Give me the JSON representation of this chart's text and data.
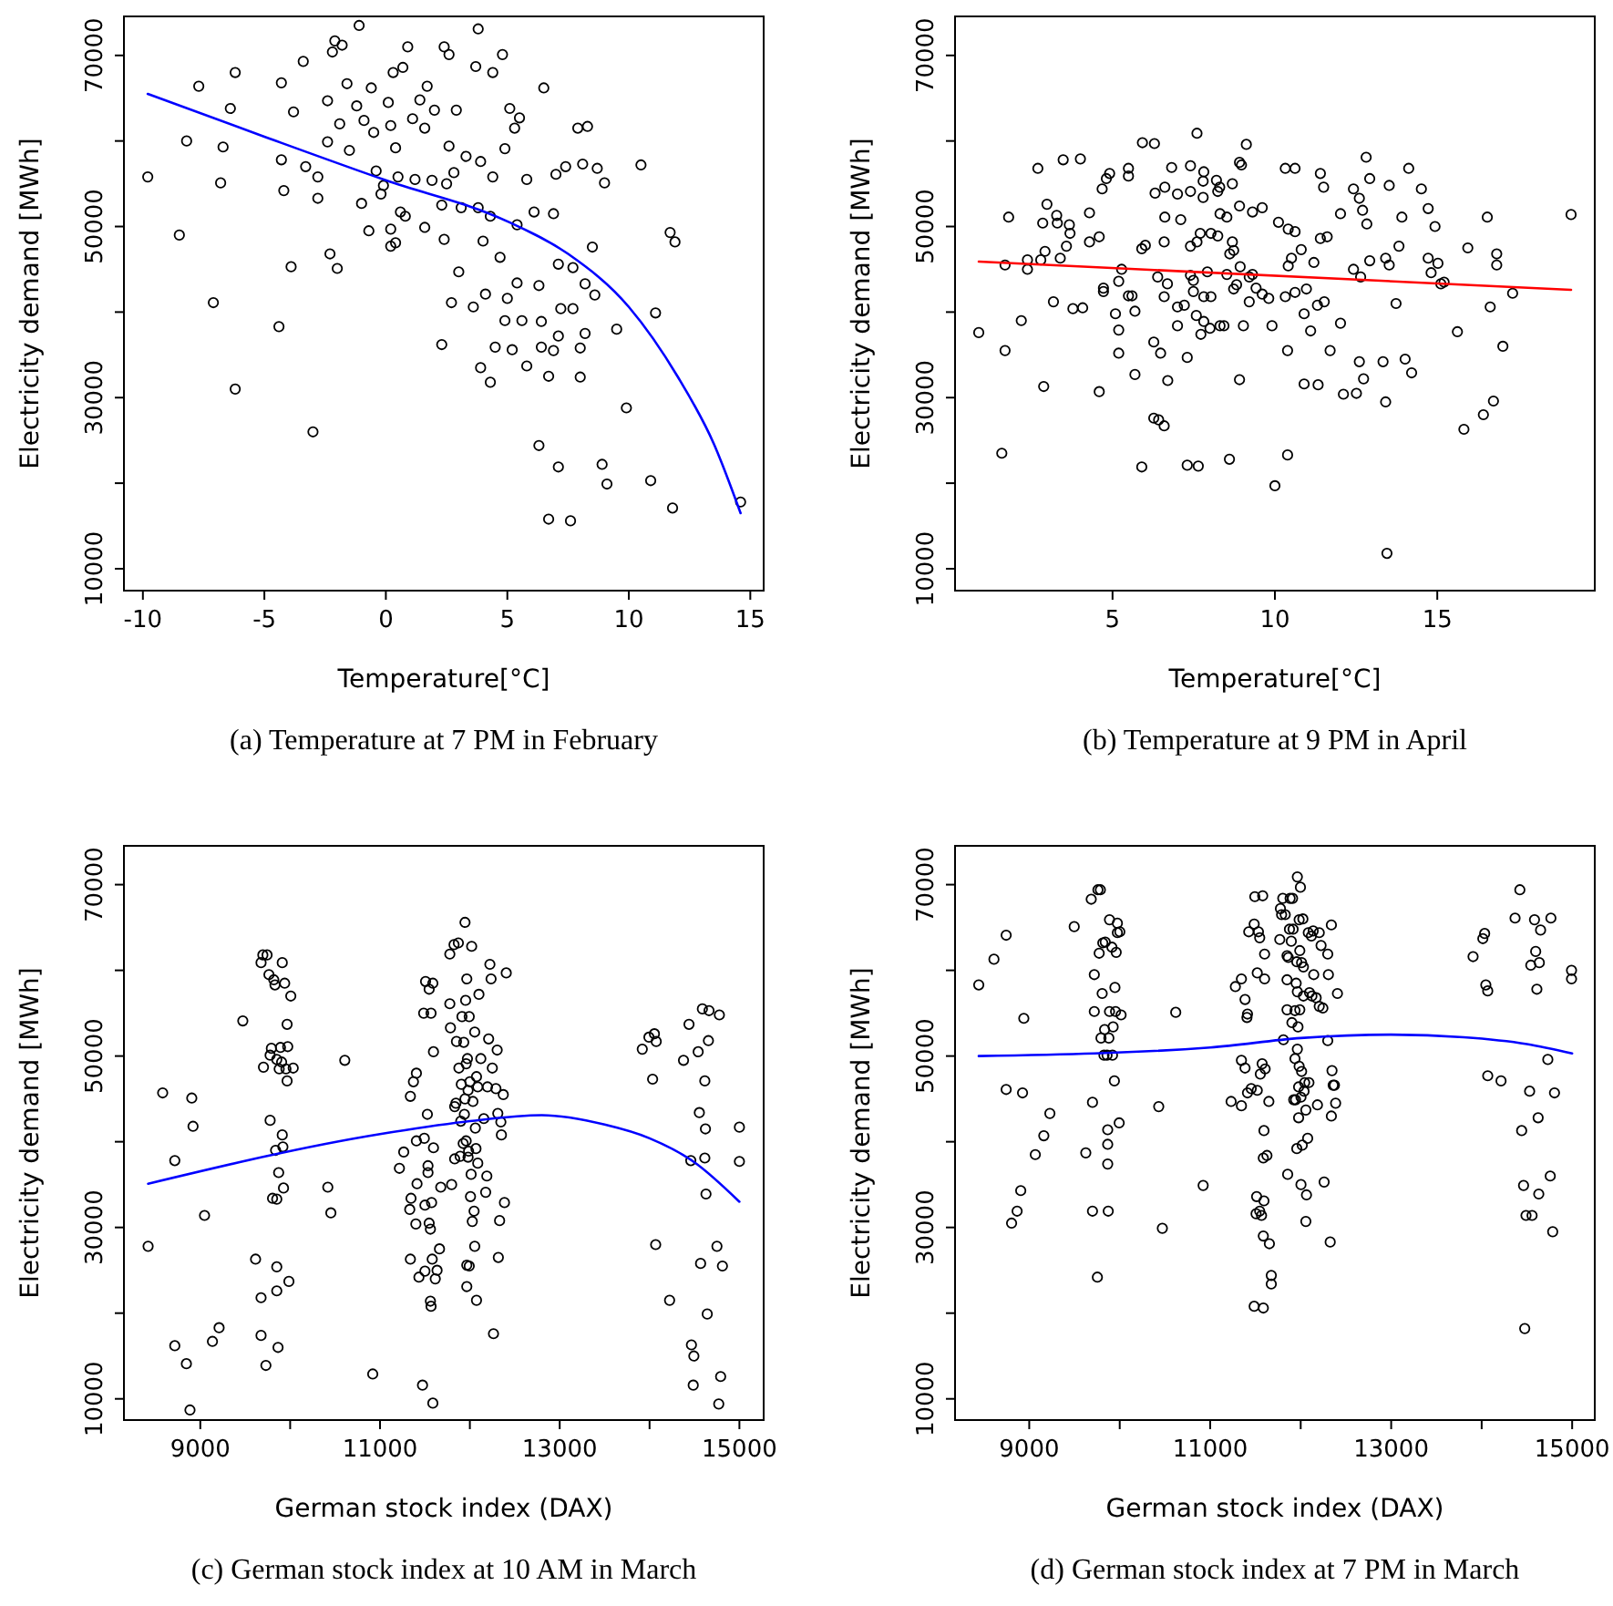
{
  "chart_data": [
    {
      "type": "scatter",
      "title": "(a) Temperature at 7 PM in February",
      "xlabel": "Temperature[°C]",
      "ylabel": "Electricity demand [MWh]",
      "xlim": [
        -10.78,
        15.55
      ],
      "ylim": [
        7440,
        74560
      ],
      "xticks": [
        -10,
        -5,
        0,
        5,
        10,
        15
      ],
      "yticks": [
        10000,
        {
          "value": 20000,
          "label": null
        },
        30000,
        {
          "value": 40000,
          "label": null
        },
        50000,
        {
          "value": 60000,
          "label": null
        },
        70000
      ],
      "series": [
        {
          "marker": "circle",
          "color": "#000000",
          "x": [
            -9.8,
            -8.5,
            -8.2,
            -7.7,
            -7.1,
            -6.8,
            -6.7,
            -6.4,
            -6.2,
            -6.2,
            -4.4,
            -4.3,
            -4.3,
            -4.2,
            -3.9,
            -3.8,
            -3.4,
            -3.3,
            -3.0,
            -2.8,
            -2.8,
            -2.4,
            -2.4,
            -2.3,
            -2.2,
            -2.1,
            -2.0,
            -1.9,
            -1.8,
            -1.6,
            -1.5,
            -1.2,
            -1.1,
            -1.0,
            -0.9,
            -0.7,
            -0.6,
            -0.5,
            -0.4,
            -0.2,
            -0.1,
            0.1,
            0.2,
            0.2,
            0.2,
            0.3,
            0.4,
            0.4,
            0.5,
            0.6,
            0.7,
            0.8,
            0.9,
            1.1,
            1.2,
            1.4,
            1.6,
            1.6,
            1.7,
            1.9,
            2.0,
            2.3,
            2.3,
            2.4,
            2.4,
            2.5,
            2.6,
            2.6,
            2.7,
            2.8,
            2.9,
            3.0,
            3.1,
            3.3,
            3.6,
            3.7,
            3.8,
            3.8,
            3.9,
            3.9,
            4.0,
            4.1,
            4.3,
            4.3,
            4.4,
            4.4,
            4.5,
            4.7,
            4.8,
            4.9,
            4.9,
            5.0,
            5.1,
            5.2,
            5.3,
            5.4,
            5.4,
            5.5,
            5.6,
            5.8,
            5.8,
            6.1,
            6.3,
            6.3,
            6.4,
            6.4,
            6.5,
            6.7,
            6.7,
            6.9,
            6.9,
            7.0,
            7.1,
            7.1,
            7.1,
            7.2,
            7.4,
            7.6,
            7.7,
            7.7,
            7.9,
            8.0,
            8.0,
            8.1,
            8.2,
            8.2,
            8.3,
            8.5,
            8.6,
            8.7,
            8.9,
            9.0,
            9.1,
            9.5,
            9.9,
            10.5,
            10.9,
            11.1,
            11.7,
            11.8,
            11.9,
            14.6
          ],
          "values": [
            55800,
            49000,
            60000,
            66400,
            41100,
            55100,
            59300,
            63800,
            68000,
            31000,
            38300,
            57800,
            66800,
            54200,
            45300,
            63400,
            69300,
            57000,
            26000,
            55800,
            53300,
            64700,
            59900,
            46800,
            70400,
            71700,
            45100,
            62000,
            71200,
            66700,
            58900,
            64100,
            73500,
            52700,
            62400,
            49500,
            66200,
            61000,
            56500,
            53800,
            54800,
            64500,
            61800,
            49700,
            47700,
            68000,
            59200,
            48100,
            55800,
            51700,
            68600,
            51200,
            71000,
            62600,
            55500,
            64800,
            49900,
            61500,
            66400,
            55400,
            63600,
            36200,
            52500,
            71000,
            48500,
            55000,
            70100,
            59400,
            41100,
            56300,
            63600,
            44700,
            52200,
            58200,
            40600,
            68700,
            73100,
            52200,
            57600,
            33500,
            48300,
            42100,
            51200,
            31800,
            55800,
            68000,
            35900,
            46400,
            70100,
            59100,
            39000,
            41600,
            63800,
            35600,
            61500,
            50200,
            43400,
            62700,
            39000,
            55500,
            33700,
            51700,
            24400,
            43100,
            38900,
            35900,
            66200,
            32500,
            15800,
            51500,
            35500,
            56100,
            45600,
            21900,
            37200,
            40400,
            57000,
            15600,
            45200,
            40400,
            61500,
            35800,
            32400,
            57300,
            43300,
            37500,
            61700,
            47600,
            42000,
            56800,
            22200,
            55100,
            19900,
            38000,
            28800,
            57200,
            20300,
            39900,
            49300,
            17100,
            48200,
            17800
          ]
        },
        {
          "type": "line",
          "color": "#0000ff",
          "x": [
            -9.8,
            -5,
            0,
            5,
            7.5,
            10,
            12,
            13.5,
            14.6
          ],
          "values": [
            65500,
            60500,
            55400,
            50600,
            46800,
            40600,
            32500,
            24600,
            16500
          ]
        }
      ]
    },
    {
      "type": "scatter",
      "title": "(b) Temperature at 9 PM in April",
      "xlabel": "Temperature[°C]",
      "ylabel": "Electricity demand [MWh]",
      "xlim": [
        0.15,
        19.85
      ],
      "ylim": [
        7440,
        74560
      ],
      "xticks": [
        5,
        10,
        15
      ],
      "yticks": [
        10000,
        {
          "value": 20000,
          "label": null
        },
        30000,
        {
          "value": 40000,
          "label": null
        },
        50000,
        {
          "value": 60000,
          "label": null
        },
        70000
      ],
      "series": [
        {
          "marker": "circle",
          "color": "#000000",
          "x": [
            0.88,
            1.59,
            1.69,
            1.69,
            1.8,
            2.19,
            2.38,
            2.38,
            2.7,
            2.79,
            2.85,
            2.88,
            2.92,
            2.98,
            3.18,
            3.28,
            3.3,
            3.39,
            3.48,
            3.58,
            3.67,
            3.69,
            3.78,
            4.01,
            4.08,
            4.29,
            4.29,
            4.59,
            4.59,
            4.68,
            4.72,
            4.72,
            4.81,
            4.91,
            5.09,
            5.19,
            5.19,
            5.19,
            5.28,
            5.49,
            5.49,
            5.49,
            5.6,
            5.69,
            5.69,
            5.9,
            5.9,
            5.92,
            6.01,
            6.27,
            6.27,
            6.29,
            6.31,
            6.39,
            6.42,
            6.48,
            6.59,
            6.59,
            6.59,
            6.61,
            6.61,
            6.69,
            6.7,
            6.82,
            7.0,
            7.0,
            7.0,
            7.1,
            7.21,
            7.3,
            7.3,
            7.4,
            7.4,
            7.4,
            7.4,
            7.49,
            7.49,
            7.58,
            7.6,
            7.6,
            7.64,
            7.7,
            7.72,
            7.79,
            7.79,
            7.81,
            7.81,
            7.81,
            7.92,
            8.0,
            8.03,
            8.03,
            8.2,
            8.24,
            8.24,
            8.3,
            8.31,
            8.31,
            8.43,
            8.52,
            8.52,
            8.6,
            8.61,
            8.69,
            8.69,
            8.73,
            8.73,
            8.82,
            8.91,
            8.91,
            8.91,
            8.93,
            8.97,
            9.03,
            9.12,
            9.21,
            9.21,
            9.31,
            9.31,
            9.42,
            9.61,
            9.61,
            9.81,
            9.91,
            10.0,
            10.11,
            10.32,
            10.32,
            10.39,
            10.39,
            10.41,
            10.41,
            10.51,
            10.62,
            10.62,
            10.62,
            10.81,
            10.9,
            10.9,
            10.97,
            11.1,
            11.2,
            11.31,
            11.33,
            11.4,
            11.4,
            11.5,
            11.52,
            11.61,
            11.7,
            12.02,
            12.02,
            12.11,
            12.42,
            12.42,
            12.51,
            12.6,
            12.6,
            12.64,
            12.7,
            12.73,
            12.81,
            12.83,
            12.92,
            12.92,
            13.33,
            13.41,
            13.41,
            13.45,
            13.52,
            13.52,
            13.73,
            13.82,
            13.91,
            14.01,
            14.12,
            14.21,
            14.51,
            14.72,
            14.72,
            14.81,
            14.93,
            15.02,
            15.11,
            15.21,
            15.62,
            15.82,
            15.94,
            16.42,
            16.54,
            16.63,
            16.73,
            16.83,
            16.83,
            17.02,
            17.32,
            19.12
          ],
          "values": [
            37600,
            23500,
            45500,
            35500,
            51100,
            39000,
            46100,
            45000,
            56800,
            46100,
            50400,
            31300,
            47100,
            52600,
            41200,
            51300,
            50400,
            46300,
            57800,
            47700,
            50200,
            49200,
            40400,
            57900,
            40500,
            51600,
            48200,
            30700,
            48800,
            54400,
            42800,
            42400,
            55600,
            56200,
            39800,
            37900,
            43600,
            35200,
            45000,
            56800,
            55900,
            41900,
            41900,
            32700,
            40100,
            47400,
            21900,
            59800,
            47800,
            36500,
            27600,
            59700,
            53900,
            44100,
            27400,
            35200,
            26700,
            48200,
            41800,
            54600,
            51100,
            43300,
            32000,
            56900,
            53800,
            40600,
            38400,
            50800,
            40800,
            34700,
            22100,
            57100,
            54100,
            47700,
            44300,
            43700,
            42400,
            39600,
            60900,
            48200,
            22000,
            49200,
            37400,
            53400,
            55300,
            56400,
            41800,
            38900,
            44700,
            38100,
            41800,
            49200,
            55400,
            48900,
            54100,
            54600,
            38400,
            51500,
            38400,
            51100,
            44400,
            22800,
            46800,
            55000,
            48200,
            47200,
            42700,
            43200,
            57500,
            32100,
            52400,
            45300,
            57200,
            38400,
            59600,
            41200,
            44100,
            44400,
            51700,
            42800,
            52200,
            42100,
            41600,
            38400,
            19700,
            50500,
            56800,
            41800,
            23300,
            35500,
            49700,
            45400,
            46300,
            56800,
            42300,
            49400,
            47300,
            31600,
            39800,
            42700,
            37800,
            45800,
            40800,
            31500,
            56200,
            48600,
            54600,
            41200,
            48800,
            35500,
            38700,
            51500,
            30400,
            54400,
            45000,
            30500,
            53300,
            34200,
            44100,
            51900,
            32200,
            58100,
            50300,
            46000,
            55600,
            34200,
            46300,
            29500,
            11800,
            54800,
            45500,
            41000,
            47700,
            51100,
            34500,
            56800,
            32900,
            54400,
            52100,
            46300,
            44600,
            50000,
            45700,
            43300,
            43500,
            37700,
            26300,
            47500,
            28000,
            51100,
            40600,
            29600,
            46800,
            45500,
            36000,
            42200,
            51400
          ]
        },
        {
          "type": "line",
          "color": "#ff0000",
          "x": [
            0.88,
            19.12
          ],
          "values": [
            45900,
            42600
          ]
        }
      ]
    },
    {
      "type": "scatter",
      "title": "(c) German stock index at 10 AM in March",
      "xlabel": "German stock index (DAX)",
      "ylabel": "Electricity demand [MWh]",
      "xlim": [
        8150,
        15270
      ],
      "ylim": [
        7524,
        74528
      ],
      "xticks": [
        9000,
        {
          "value": 10000,
          "label": null
        },
        11000,
        {
          "value": 12000,
          "label": null
        },
        13000,
        {
          "value": 14000,
          "label": null
        },
        15000
      ],
      "yticks": [
        10000,
        {
          "value": 20000,
          "label": null
        },
        30000,
        {
          "value": 40000,
          "label": null
        },
        50000,
        {
          "value": 60000,
          "label": null
        },
        70000
      ],
      "series": [
        {
          "marker": "circle",
          "color": "#000000",
          "x": [
            8419,
            8581,
            8716,
            8716,
            8845,
            8885,
            8905,
            8919,
            9047,
            9135,
            9209,
            9473,
            9615,
            9676,
            9676,
            9676,
            9696,
            9703,
            9730,
            9743,
            9764,
            9777,
            9777,
            9791,
            9804,
            9818,
            9831,
            9838,
            9851,
            9851,
            9851,
            9851,
            9865,
            9878,
            9872,
            9892,
            9905,
            9912,
            9919,
            9912,
            9926,
            9939,
            9953,
            9966,
            9966,
            9973,
            9986,
            10007,
            10034,
            10419,
            10453,
            10608,
            10919,
            11216,
            11264,
            11338,
            11345,
            11331,
            11338,
            11372,
            11399,
            11405,
            11412,
            11405,
            11433,
            11473,
            11493,
            11500,
            11486,
            11500,
            11507,
            11527,
            11534,
            11534,
            11547,
            11547,
            11561,
            11561,
            11568,
            11568,
            11574,
            11581,
            11588,
            11588,
            11595,
            11595,
            11615,
            11635,
            11662,
            11676,
            11777,
            11777,
            11784,
            11797,
            11824,
            11831,
            11831,
            11845,
            11851,
            11872,
            11878,
            11892,
            11899,
            11905,
            11912,
            11926,
            11932,
            11939,
            11946,
            11946,
            11953,
            11959,
            11959,
            11966,
            11966,
            11966,
            11973,
            11980,
            11980,
            11986,
            11993,
            11993,
            12000,
            12007,
            12014,
            12020,
            12027,
            12034,
            12047,
            12054,
            12054,
            12061,
            12068,
            12074,
            12074,
            12088,
            12088,
            12101,
            12122,
            12155,
            12176,
            12189,
            12196,
            12209,
            12223,
            12236,
            12250,
            12263,
            12290,
            12304,
            12311,
            12317,
            12331,
            12345,
            12351,
            12372,
            12385,
            12405,
            13919,
            13993,
            14034,
            14054,
            14074,
            14068,
            14223,
            14378,
            14439,
            14459,
            14466,
            14493,
            14486,
            14541,
            14554,
            14568,
            14588,
            14615,
            14615,
            14622,
            14628,
            14642,
            14662,
            14655,
            14750,
            14777,
            14770,
            14791,
            14811,
            15000,
            15000
          ],
          "values": [
            27800,
            45700,
            37800,
            16200,
            14100,
            8700,
            45100,
            41800,
            31400,
            16700,
            18300,
            54100,
            26300,
            21800,
            17400,
            60900,
            61800,
            48700,
            13900,
            61800,
            59500,
            42500,
            50100,
            50900,
            33400,
            58900,
            58300,
            39000,
            49600,
            33300,
            25400,
            22600,
            16000,
            48500,
            36400,
            51000,
            49300,
            40800,
            39400,
            60900,
            34600,
            58500,
            48500,
            47100,
            53700,
            51100,
            23700,
            57000,
            48600,
            34700,
            31700,
            49500,
            12900,
            36900,
            38800,
            45300,
            33400,
            32100,
            26300,
            47000,
            30400,
            48000,
            35100,
            40100,
            24200,
            11600,
            40400,
            32600,
            55000,
            24900,
            58700,
            43200,
            37200,
            36400,
            30500,
            57800,
            29800,
            21400,
            20800,
            55000,
            32900,
            26300,
            9500,
            58500,
            39300,
            50500,
            24000,
            25000,
            27500,
            34700,
            56100,
            61900,
            53300,
            35000,
            63000,
            44100,
            38000,
            44500,
            51700,
            63200,
            48600,
            38300,
            42400,
            46700,
            54600,
            39800,
            51600,
            43200,
            65600,
            45000,
            56500,
            49100,
            40100,
            59000,
            25600,
            23100,
            49700,
            38200,
            46000,
            38900,
            54600,
            25500,
            47000,
            33600,
            36200,
            62800,
            30700,
            44700,
            31900,
            52800,
            27800,
            41600,
            39200,
            21500,
            47600,
            37500,
            46400,
            57200,
            49700,
            42700,
            34100,
            36000,
            46400,
            52000,
            60700,
            59000,
            48600,
            17600,
            46200,
            50700,
            43300,
            26500,
            30800,
            42300,
            40800,
            45500,
            32900,
            59700,
            50800,
            52200,
            47300,
            52600,
            51700,
            28000,
            21500,
            49500,
            53700,
            37800,
            16300,
            15000,
            11600,
            50500,
            43400,
            25800,
            55500,
            38100,
            47100,
            41500,
            33900,
            19900,
            55300,
            51800,
            27800,
            54800,
            9400,
            12600,
            25500,
            41700,
            37700
          ]
        },
        {
          "type": "line",
          "color": "#0000ff",
          "x": [
            8419,
            11000,
            12000,
            12800,
            13500,
            14000,
            14500,
            15000
          ],
          "values": [
            35100,
            40900,
            42400,
            43100,
            42000,
            40400,
            37600,
            33000
          ]
        }
      ]
    },
    {
      "type": "scatter",
      "title": "(d) German stock index at 7 PM in March",
      "xlabel": "German stock index (DAX)",
      "ylabel": "Electricity demand [MWh]",
      "xlim": [
        8180,
        15250
      ],
      "ylim": [
        7524,
        74528
      ],
      "xticks": [
        9000,
        {
          "value": 10000,
          "label": null
        },
        11000,
        {
          "value": 12000,
          "label": null
        },
        13000,
        {
          "value": 14000,
          "label": null
        },
        15000
      ],
      "yticks": [
        10000,
        {
          "value": 20000,
          "label": null
        },
        30000,
        {
          "value": 40000,
          "label": null
        },
        50000,
        {
          "value": 60000,
          "label": null
        },
        70000
      ],
      "series": [
        {
          "marker": "circle",
          "color": "#000000",
          "x": [
            8442,
            8610,
            8745,
            8745,
            8805,
            8866,
            8906,
            8926,
            8940,
            9067,
            9161,
            9228,
            9497,
            9625,
            9685,
            9699,
            9699,
            9719,
            9719,
            9753,
            9759,
            9773,
            9786,
            9793,
            9806,
            9813,
            9826,
            9833,
            9840,
            9860,
            9867,
            9867,
            9867,
            9873,
            9880,
            9887,
            9887,
            9914,
            9920,
            9927,
            9941,
            9947,
            9954,
            9961,
            9974,
            9974,
            9994,
            10001,
            10015,
            10431,
            10471,
            10619,
            10922,
            11231,
            11278,
            11345,
            11345,
            11345,
            11385,
            11385,
            11406,
            11412,
            11412,
            11426,
            11453,
            11486,
            11486,
            11493,
            11507,
            11513,
            11520,
            11520,
            11533,
            11547,
            11547,
            11554,
            11567,
            11574,
            11580,
            11587,
            11587,
            11587,
            11594,
            11594,
            11601,
            11601,
            11607,
            11627,
            11648,
            11654,
            11675,
            11675,
            11769,
            11776,
            11789,
            11802,
            11809,
            11829,
            11849,
            11849,
            11849,
            11856,
            11863,
            11876,
            11883,
            11896,
            11903,
            11910,
            11916,
            11923,
            11937,
            11937,
            11943,
            11950,
            11957,
            11957,
            11963,
            11963,
            11963,
            11970,
            11977,
            11977,
            11983,
            11983,
            11990,
            11990,
            11997,
            12003,
            12003,
            12010,
            12010,
            12017,
            12024,
            12030,
            12030,
            12037,
            12044,
            12057,
            12057,
            12064,
            12077,
            12084,
            12091,
            12097,
            12118,
            12124,
            12138,
            12144,
            12171,
            12185,
            12205,
            12205,
            12225,
            12245,
            12259,
            12299,
            12299,
            12306,
            12326,
            12339,
            12339,
            12346,
            12359,
            12373,
            12386,
            12406,
            13905,
            14013,
            14033,
            14046,
            14067,
            14067,
            14214,
            14369,
            14422,
            14442,
            14463,
            14476,
            14490,
            14530,
            14543,
            14557,
            14584,
            14597,
            14610,
            14624,
            14631,
            14637,
            14651,
            14731,
            14758,
            14765,
            14785,
            14805,
            14993,
            14993
          ],
          "values": [
            58300,
            61300,
            64100,
            46100,
            30500,
            31900,
            34300,
            45700,
            54400,
            38500,
            40700,
            43300,
            65100,
            38700,
            68300,
            44600,
            31900,
            59500,
            55200,
            24200,
            69400,
            62000,
            69400,
            52100,
            57300,
            63200,
            50100,
            53100,
            63300,
            50100,
            39700,
            37400,
            41400,
            31900,
            52100,
            65900,
            55200,
            62700,
            50100,
            53400,
            47100,
            58000,
            55200,
            62100,
            65500,
            64400,
            42200,
            64500,
            54800,
            44100,
            29900,
            55100,
            34900,
            44700,
            58100,
            44200,
            59000,
            49500,
            56600,
            48600,
            54500,
            54900,
            45700,
            64500,
            46200,
            65400,
            20800,
            68600,
            31600,
            33600,
            59700,
            46000,
            64500,
            63800,
            31900,
            47900,
            31400,
            49100,
            68700,
            20600,
            29000,
            38100,
            41300,
            33100,
            59000,
            61900,
            48500,
            38400,
            44700,
            28100,
            24400,
            23400,
            63600,
            67200,
            66500,
            68400,
            51900,
            66500,
            61700,
            58900,
            55400,
            36200,
            61500,
            64800,
            68400,
            63400,
            53900,
            68400,
            64800,
            44900,
            49700,
            55300,
            44900,
            58500,
            61000,
            39200,
            70900,
            50800,
            57500,
            53400,
            46400,
            42800,
            48800,
            65900,
            62300,
            55400,
            69700,
            35000,
            45200,
            60900,
            48200,
            39600,
            66000,
            57000,
            60400,
            45900,
            46900,
            30700,
            43700,
            33800,
            40400,
            64400,
            46900,
            57400,
            64000,
            57000,
            64600,
            59500,
            56800,
            44300,
            64400,
            55800,
            62900,
            55600,
            35300,
            61900,
            51800,
            59500,
            28300,
            43000,
            65300,
            48300,
            46600,
            46600,
            44500,
            57300,
            61600,
            63700,
            64300,
            58300,
            57600,
            47700,
            47100,
            66100,
            69400,
            41300,
            34900,
            18200,
            31400,
            45900,
            60600,
            31400,
            65900,
            62200,
            57800,
            42800,
            33900,
            60900,
            64700,
            49600,
            36000,
            66100,
            29500,
            45700,
            60000,
            59000
          ]
        },
        {
          "type": "line",
          "color": "#0000ff",
          "x": [
            8442,
            11000,
            12000,
            13000,
            13800,
            14500,
            15000
          ],
          "values": [
            50000,
            51000,
            52100,
            52500,
            52200,
            51400,
            50300
          ]
        }
      ]
    }
  ]
}
